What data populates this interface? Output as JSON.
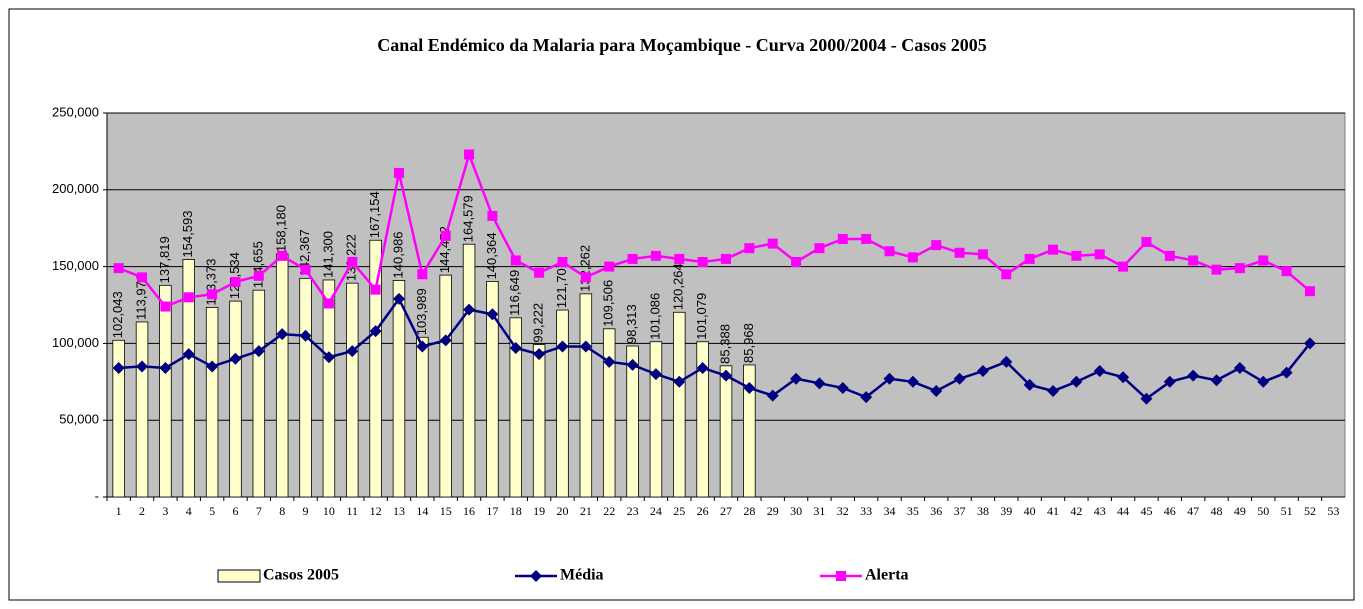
{
  "chart_data": {
    "type": "bar",
    "title": "Canal Endémico da Malaria para Moçambique - Curva 2000/2004 - Casos 2005",
    "categories": [
      "1",
      "2",
      "3",
      "4",
      "5",
      "6",
      "7",
      "8",
      "9",
      "10",
      "11",
      "12",
      "13",
      "14",
      "15",
      "16",
      "17",
      "18",
      "19",
      "20",
      "21",
      "22",
      "23",
      "24",
      "25",
      "26",
      "27",
      "28",
      "29",
      "30",
      "31",
      "32",
      "33",
      "34",
      "35",
      "36",
      "37",
      "38",
      "39",
      "40",
      "41",
      "42",
      "43",
      "44",
      "45",
      "46",
      "47",
      "48",
      "49",
      "50",
      "51",
      "52",
      "53"
    ],
    "ylim": [
      0,
      250000
    ],
    "yticks": [
      {
        "value": 0,
        "label": "-"
      },
      {
        "value": 50000,
        "label": "50,000"
      },
      {
        "value": 100000,
        "label": "100,000"
      },
      {
        "value": 150000,
        "label": "150,000"
      },
      {
        "value": 200000,
        "label": "200,000"
      },
      {
        "value": 250000,
        "label": "250,000"
      }
    ],
    "grid": true,
    "legend": "bottom",
    "background": "#c0c0c0",
    "series": [
      {
        "name": "Casos 2005",
        "type": "bar",
        "color": "#ffffcc",
        "values": [
          102043,
          113972,
          137819,
          154593,
          123373,
          127534,
          134655,
          158180,
          142367,
          141300,
          139222,
          167154,
          140986,
          103989,
          144452,
          164579,
          140364,
          116649,
          99222,
          121701,
          132262,
          109506,
          98313,
          101086,
          120264,
          101079,
          85388,
          85968,
          null,
          null,
          null,
          null,
          null,
          null,
          null,
          null,
          null,
          null,
          null,
          null,
          null,
          null,
          null,
          null,
          null,
          null,
          null,
          null,
          null,
          null,
          null,
          null,
          null
        ],
        "value_labels": [
          "102,043",
          "113,972",
          "137,819",
          "154,593",
          "123,373",
          "127,534",
          "134,655",
          "158,180",
          "142,367",
          "141,300",
          "139,222",
          "167,154",
          "140,986",
          "103,989",
          "144,452",
          "164,579",
          "140,364",
          "116,649",
          "99,222",
          "121,701",
          "132,262",
          "109,506",
          "98,313",
          "101,086",
          "120,264",
          "101,079",
          "85,388",
          "85,968",
          null,
          null,
          null,
          null,
          null,
          null,
          null,
          null,
          null,
          null,
          null,
          null,
          null,
          null,
          null,
          null,
          null,
          null,
          null,
          null,
          null,
          null,
          null,
          null,
          null
        ]
      },
      {
        "name": "Média",
        "type": "line",
        "marker": "diamond",
        "color": "#000080",
        "values": [
          84000,
          85000,
          84000,
          93000,
          85000,
          90000,
          95000,
          106000,
          105000,
          91000,
          95000,
          108000,
          129000,
          98000,
          102000,
          122000,
          119000,
          97000,
          93000,
          98000,
          98000,
          88000,
          86000,
          80000,
          75000,
          84000,
          79000,
          71000,
          66000,
          77000,
          74000,
          71000,
          65000,
          77000,
          75000,
          69000,
          77000,
          82000,
          88000,
          73000,
          69000,
          75000,
          82000,
          78000,
          64000,
          75000,
          79000,
          76000,
          84000,
          75000,
          81000,
          100000,
          null
        ]
      },
      {
        "name": "Alerta",
        "type": "line",
        "marker": "square",
        "color": "#ff00ff",
        "values": [
          149000,
          143000,
          124000,
          130000,
          132000,
          140000,
          144000,
          157000,
          148000,
          126000,
          153000,
          135000,
          211000,
          145000,
          170000,
          223000,
          183000,
          154000,
          146000,
          153000,
          143000,
          150000,
          155000,
          157000,
          155000,
          153000,
          155000,
          162000,
          165000,
          153000,
          162000,
          168000,
          168000,
          160000,
          156000,
          164000,
          159000,
          158000,
          145000,
          155000,
          161000,
          157000,
          158000,
          150000,
          166000,
          157000,
          154000,
          148000,
          149000,
          154000,
          147000,
          134000,
          null
        ]
      }
    ]
  }
}
